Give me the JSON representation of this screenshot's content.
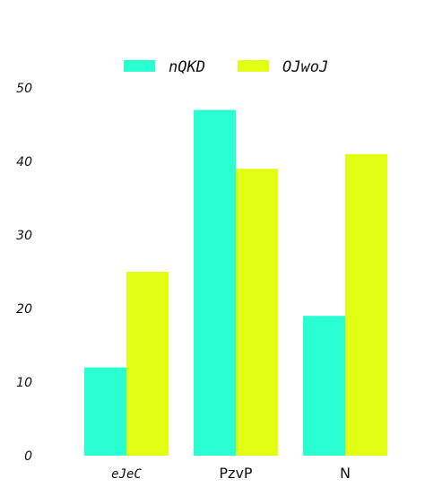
{
  "chart_data": {
    "type": "bar",
    "title": "",
    "xlabel": "",
    "ylabel": "",
    "categories": [
      "eJeC",
      "PzvP",
      "N"
    ],
    "series": [
      {
        "name": "nQKD",
        "values": [
          12,
          47,
          19
        ],
        "color": "#29ffd0"
      },
      {
        "name": "OJwoJ",
        "values": [
          25,
          39,
          41
        ],
        "color": "#e2ff13"
      }
    ],
    "ylim": [
      0,
      50
    ],
    "yticks": [
      0,
      10,
      20,
      30,
      40,
      50
    ],
    "grid": false,
    "legend_position": "top-center"
  }
}
